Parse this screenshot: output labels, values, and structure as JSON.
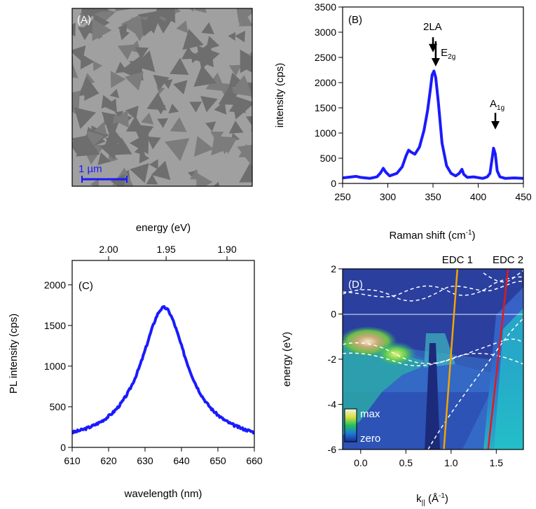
{
  "chart_data": [
    {
      "panel": "A",
      "type": "image",
      "panel_label": "(A)",
      "scale_bar": "1 µm"
    },
    {
      "panel": "B",
      "type": "line",
      "panel_label": "(B)",
      "xlabel": "Raman shift (cm",
      "xlabel_sup": "-1",
      "xlabel_end": ")",
      "ylabel": "intensity (cps)",
      "xlim": [
        250,
        450
      ],
      "ylim": [
        0,
        3500
      ],
      "xticks": [
        250,
        300,
        350,
        400,
        450
      ],
      "yticks": [
        0,
        500,
        1000,
        1500,
        2000,
        2500,
        3000,
        3500
      ],
      "color": "#1a1aff",
      "series": [
        {
          "name": "Raman spectrum",
          "x": [
            250,
            260,
            265,
            270,
            280,
            288,
            292,
            295,
            298,
            302,
            310,
            316,
            320,
            323,
            326,
            330,
            335,
            340,
            344,
            347,
            349,
            351,
            353,
            356,
            360,
            365,
            370,
            375,
            379,
            382,
            384,
            388,
            395,
            405,
            410,
            413,
            415,
            417,
            419,
            421,
            424,
            430,
            440,
            450
          ],
          "y": [
            110,
            130,
            140,
            120,
            100,
            130,
            210,
            300,
            220,
            150,
            200,
            330,
            540,
            660,
            620,
            580,
            720,
            1050,
            1450,
            1850,
            2150,
            2230,
            2100,
            1600,
            800,
            350,
            200,
            150,
            200,
            280,
            180,
            120,
            130,
            100,
            130,
            200,
            450,
            700,
            580,
            250,
            130,
            100,
            110,
            100
          ]
        }
      ],
      "annotations": [
        {
          "text": "2LA",
          "x": 350,
          "y": 2900
        },
        {
          "text": "E",
          "sub": "2g",
          "x": 354,
          "y": 2500
        },
        {
          "text": "A",
          "sub": "1g",
          "x": 419,
          "y": 1400
        }
      ]
    },
    {
      "panel": "C",
      "type": "line",
      "panel_label": "(C)",
      "xlabel": "wavelength (nm)",
      "ylabel": "PL intensity (cps)",
      "top_xlabel": "energy (eV)",
      "xlim": [
        610,
        660
      ],
      "ylim": [
        0,
        2300
      ],
      "xticks": [
        610,
        620,
        630,
        640,
        650,
        660
      ],
      "yticks": [
        0,
        500,
        1000,
        1500,
        2000
      ],
      "top_xticks": [
        {
          "label": "2.00",
          "wavelength": 620
        },
        {
          "label": "1.95",
          "wavelength": 635.8
        },
        {
          "label": "1.90",
          "wavelength": 652.5
        }
      ],
      "color": "#1a1aff",
      "peak_center_nm": 635.2,
      "peak_value": 1720,
      "baseline": 40,
      "linewidth_nm": 15.4
    },
    {
      "panel": "D",
      "type": "heatmap",
      "panel_label": "(D)",
      "xlabel": "k",
      "xlabel_sub": "||",
      "xlabel_unit": " (Å",
      "xlabel_unit_sup": "-1",
      "xlabel_unit_end": ")",
      "ylabel": "energy (eV)",
      "xlim": [
        -0.2,
        1.8
      ],
      "ylim": [
        -6,
        2
      ],
      "xticks": [
        0.0,
        0.5,
        1.0,
        1.5
      ],
      "xtick_labels": [
        "0.0",
        "0.5",
        "1.0",
        "1.5"
      ],
      "yticks": [
        -6,
        -4,
        -2,
        0,
        2
      ],
      "colorbar_labels": {
        "max": "max",
        "zero": "zero"
      },
      "cuts": [
        {
          "name": "EDC 1",
          "color": "#f2a500",
          "k_bottom": 0.92,
          "k_top": 1.07
        },
        {
          "name": "EDC 2",
          "color": "#e31a1c",
          "k_bottom": 1.41,
          "k_top": 1.63
        }
      ]
    }
  ]
}
